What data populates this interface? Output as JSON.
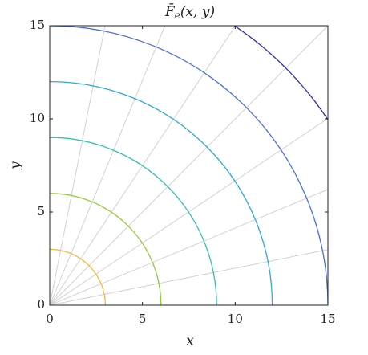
{
  "chart_data": {
    "type": "polar-contour",
    "title": {
      "base": "F̄",
      "sub": "e",
      "rest": "(x, y)"
    },
    "x_label": "x",
    "y_label": "y",
    "xlim": [
      0,
      15
    ],
    "ylim": [
      0,
      15
    ],
    "xticks": [
      0,
      5,
      10,
      15
    ],
    "yticks": [
      0,
      5,
      10,
      15
    ],
    "radial_angles_deg": [
      0,
      11.25,
      22.5,
      33.75,
      45,
      56.25,
      67.5,
      78.75,
      90
    ],
    "radial_color": "#d0d0d0",
    "levels": {
      "values": [
        3,
        6,
        9,
        12,
        15,
        18
      ],
      "colors": [
        "#f5b942",
        "#96c93d",
        "#34c0b0",
        "#2fa8d8",
        "#4c6fe0",
        "#2a2bb0"
      ]
    }
  }
}
